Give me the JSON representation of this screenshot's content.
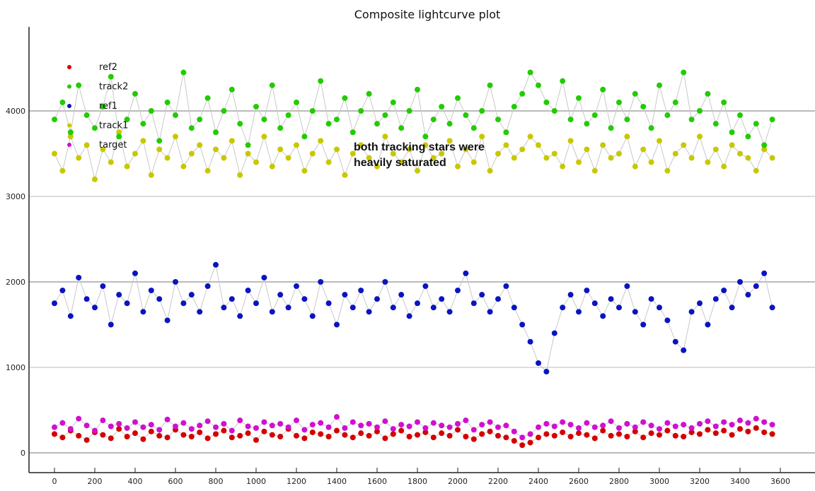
{
  "chart_data": {
    "type": "scatter",
    "title": "Composite lightcurve plot",
    "xlabel": "",
    "ylabel": "",
    "xlim": [
      -126,
      3765
    ],
    "ylim": [
      -230,
      4980
    ],
    "xticks": [
      0,
      200,
      400,
      600,
      800,
      1000,
      1200,
      1400,
      1600,
      1800,
      2000,
      2200,
      2400,
      2600,
      2800,
      3000,
      3200,
      3400,
      3600
    ],
    "yticks": [
      0,
      1000,
      2000,
      3000,
      4000
    ],
    "grid": "horizontal",
    "legend_position": "top-left",
    "annotation": {
      "lines": [
        "both tracking stars were",
        "heavily saturated"
      ],
      "x": 1450,
      "y": 3620
    },
    "x_step": 40,
    "series": [
      {
        "name": "ref2",
        "color": "#d40000",
        "values": [
          220,
          180,
          260,
          200,
          150,
          240,
          210,
          170,
          280,
          190,
          230,
          160,
          250,
          200,
          180,
          270,
          210,
          190,
          240,
          170,
          220,
          260,
          180,
          200,
          230,
          150,
          250,
          210,
          190,
          280,
          200,
          170,
          240,
          220,
          190,
          260,
          210,
          180,
          230,
          200,
          250,
          170,
          220,
          260,
          190,
          210,
          240,
          180,
          230,
          200,
          270,
          190,
          160,
          220,
          250,
          200,
          180,
          140,
          90,
          120,
          180,
          220,
          200,
          240,
          190,
          230,
          210,
          170,
          260,
          200,
          220,
          190,
          250,
          180,
          230,
          210,
          260,
          200,
          190,
          240,
          220,
          270,
          230,
          260,
          210,
          280,
          250,
          290,
          240,
          220
        ]
      },
      {
        "name": "track2",
        "color": "#22cc00",
        "values": [
          3900,
          4100,
          3750,
          4300,
          3950,
          3800,
          4050,
          4400,
          3700,
          3900,
          4200,
          3850,
          4000,
          3650,
          4100,
          3950,
          4450,
          3800,
          3900,
          4150,
          3750,
          4000,
          4250,
          3850,
          3600,
          4050,
          3900,
          4300,
          3800,
          3950,
          4100,
          3700,
          4000,
          4350,
          3850,
          3900,
          4150,
          3750,
          4000,
          4200,
          3850,
          3950,
          4100,
          3800,
          4000,
          4250,
          3700,
          3900,
          4050,
          3850,
          4150,
          3950,
          3800,
          4000,
          4300,
          3900,
          3750,
          4050,
          4200,
          4450,
          4300,
          4100,
          4000,
          4350,
          3900,
          4150,
          3850,
          3950,
          4250,
          3800,
          4100,
          3900,
          4200,
          4050,
          3800,
          4300,
          3950,
          4100,
          4450,
          3900,
          4000,
          4200,
          3850,
          4100,
          3750,
          3950,
          3700,
          3850,
          3600,
          3900
        ]
      },
      {
        "name": "ref1",
        "color": "#0a14c0",
        "values": [
          1750,
          1900,
          1600,
          2050,
          1800,
          1700,
          1950,
          1500,
          1850,
          1750,
          2100,
          1650,
          1900,
          1800,
          1550,
          2000,
          1750,
          1850,
          1650,
          1950,
          2200,
          1700,
          1800,
          1600,
          1900,
          1750,
          2050,
          1650,
          1850,
          1700,
          1950,
          1800,
          1600,
          2000,
          1750,
          1500,
          1850,
          1700,
          1900,
          1650,
          1800,
          2000,
          1700,
          1850,
          1600,
          1750,
          1950,
          1700,
          1800,
          1650,
          1900,
          2100,
          1750,
          1850,
          1650,
          1800,
          1950,
          1700,
          1500,
          1300,
          1050,
          950,
          1400,
          1700,
          1850,
          1650,
          1900,
          1750,
          1600,
          1800,
          1700,
          1950,
          1650,
          1500,
          1800,
          1700,
          1550,
          1300,
          1200,
          1650,
          1750,
          1500,
          1800,
          1900,
          1700,
          2000,
          1850,
          1950,
          2100,
          1700
        ]
      },
      {
        "name": "track1",
        "color": "#c8c800",
        "values": [
          3500,
          3300,
          3700,
          3450,
          3600,
          3200,
          3550,
          3400,
          3750,
          3350,
          3500,
          3650,
          3250,
          3550,
          3450,
          3700,
          3350,
          3500,
          3600,
          3300,
          3550,
          3450,
          3650,
          3250,
          3500,
          3400,
          3700,
          3350,
          3550,
          3450,
          3600,
          3300,
          3500,
          3650,
          3400,
          3550,
          3250,
          3500,
          3600,
          3450,
          3350,
          3700,
          3500,
          3400,
          3550,
          3300,
          3600,
          3450,
          3500,
          3650,
          3350,
          3550,
          3400,
          3700,
          3300,
          3500,
          3600,
          3450,
          3550,
          3700,
          3600,
          3450,
          3500,
          3350,
          3650,
          3400,
          3550,
          3300,
          3600,
          3450,
          3500,
          3700,
          3350,
          3550,
          3400,
          3650,
          3300,
          3500,
          3600,
          3450,
          3700,
          3400,
          3550,
          3350,
          3600,
          3500,
          3450,
          3300,
          3550,
          3450
        ]
      },
      {
        "name": "target",
        "color": "#d010d0",
        "values": [
          300,
          350,
          280,
          400,
          320,
          260,
          380,
          310,
          340,
          290,
          360,
          300,
          330,
          270,
          390,
          310,
          350,
          280,
          320,
          370,
          300,
          340,
          260,
          380,
          310,
          290,
          360,
          320,
          340,
          300,
          380,
          270,
          330,
          350,
          300,
          420,
          290,
          360,
          320,
          340,
          300,
          370,
          280,
          330,
          310,
          360,
          290,
          350,
          320,
          300,
          340,
          380,
          270,
          330,
          360,
          300,
          320,
          250,
          180,
          220,
          300,
          340,
          310,
          360,
          330,
          290,
          350,
          300,
          320,
          370,
          290,
          340,
          300,
          360,
          320,
          280,
          350,
          310,
          330,
          290,
          340,
          370,
          310,
          360,
          330,
          380,
          350,
          400,
          360,
          330
        ]
      }
    ]
  }
}
